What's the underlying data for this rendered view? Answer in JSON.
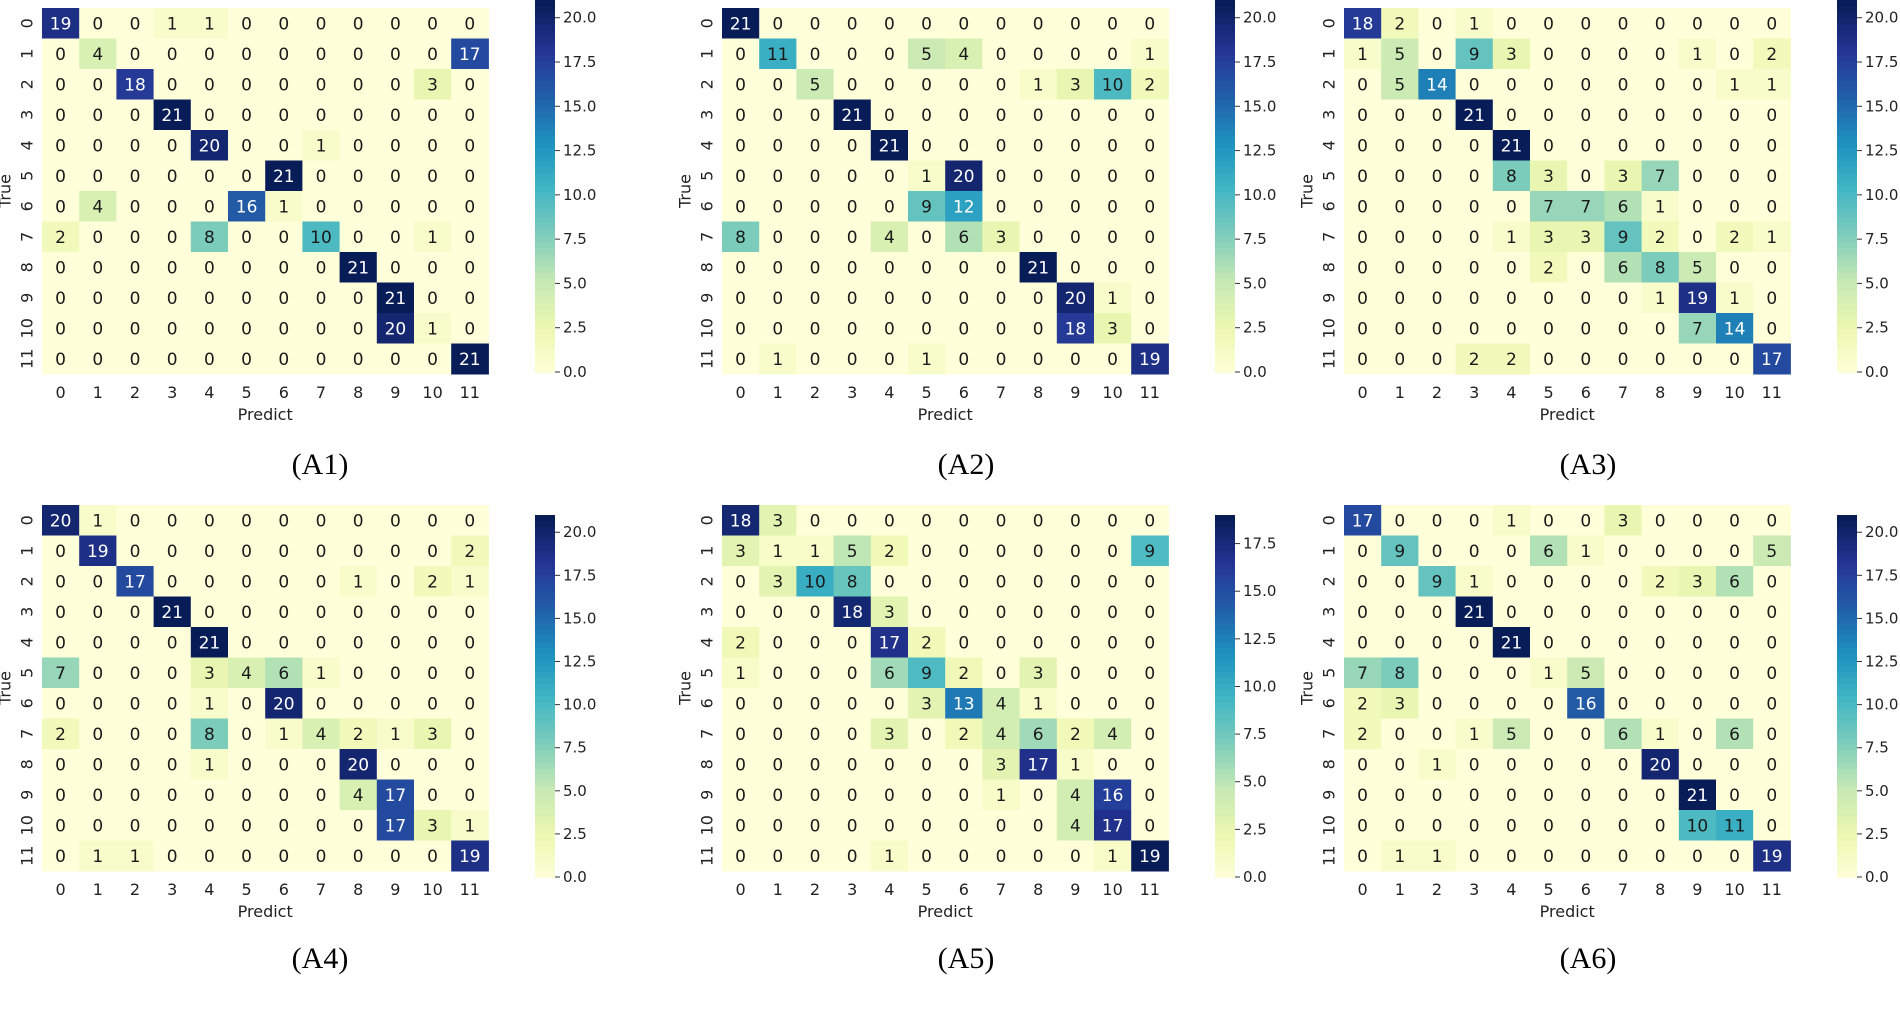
{
  "colorscale": {
    "name": "YlGnBu",
    "stops": [
      "#ffffd9",
      "#edf8b1",
      "#c7e9b4",
      "#7fcdbb",
      "#41b6c4",
      "#1d91c0",
      "#225ea8",
      "#253494",
      "#081d58"
    ]
  },
  "chart_data": [
    {
      "type": "heatmap",
      "caption": "(A1)",
      "xlabel": "Predict",
      "ylabel": "True",
      "categories": [
        "0",
        "1",
        "2",
        "3",
        "4",
        "5",
        "6",
        "7",
        "8",
        "9",
        "10",
        "11"
      ],
      "colorbar_ticks": [
        "0.0",
        "2.5",
        "5.0",
        "7.5",
        "10.0",
        "12.5",
        "15.0",
        "17.5",
        "20.0"
      ],
      "vmax": 21,
      "matrix": [
        [
          19,
          0,
          0,
          1,
          1,
          0,
          0,
          0,
          0,
          0,
          0,
          0
        ],
        [
          0,
          4,
          0,
          0,
          0,
          0,
          0,
          0,
          0,
          0,
          0,
          17
        ],
        [
          0,
          0,
          18,
          0,
          0,
          0,
          0,
          0,
          0,
          0,
          3,
          0
        ],
        [
          0,
          0,
          0,
          21,
          0,
          0,
          0,
          0,
          0,
          0,
          0,
          0
        ],
        [
          0,
          0,
          0,
          0,
          20,
          0,
          0,
          1,
          0,
          0,
          0,
          0
        ],
        [
          0,
          0,
          0,
          0,
          0,
          0,
          21,
          0,
          0,
          0,
          0,
          0
        ],
        [
          0,
          4,
          0,
          0,
          0,
          16,
          1,
          0,
          0,
          0,
          0,
          0
        ],
        [
          2,
          0,
          0,
          0,
          8,
          0,
          0,
          10,
          0,
          0,
          1,
          0
        ],
        [
          0,
          0,
          0,
          0,
          0,
          0,
          0,
          0,
          21,
          0,
          0,
          0
        ],
        [
          0,
          0,
          0,
          0,
          0,
          0,
          0,
          0,
          0,
          21,
          0,
          0
        ],
        [
          0,
          0,
          0,
          0,
          0,
          0,
          0,
          0,
          0,
          20,
          1,
          0
        ],
        [
          0,
          0,
          0,
          0,
          0,
          0,
          0,
          0,
          0,
          0,
          0,
          21
        ]
      ]
    },
    {
      "type": "heatmap",
      "caption": "(A2)",
      "xlabel": "Predict",
      "ylabel": "True",
      "categories": [
        "0",
        "1",
        "2",
        "3",
        "4",
        "5",
        "6",
        "7",
        "8",
        "9",
        "10",
        "11"
      ],
      "colorbar_ticks": [
        "0.0",
        "2.5",
        "5.0",
        "7.5",
        "10.0",
        "12.5",
        "15.0",
        "17.5",
        "20.0"
      ],
      "vmax": 21,
      "matrix": [
        [
          21,
          0,
          0,
          0,
          0,
          0,
          0,
          0,
          0,
          0,
          0,
          0
        ],
        [
          0,
          11,
          0,
          0,
          0,
          5,
          4,
          0,
          0,
          0,
          0,
          1
        ],
        [
          0,
          0,
          5,
          0,
          0,
          0,
          0,
          0,
          1,
          3,
          10,
          2
        ],
        [
          0,
          0,
          0,
          21,
          0,
          0,
          0,
          0,
          0,
          0,
          0,
          0
        ],
        [
          0,
          0,
          0,
          0,
          21,
          0,
          0,
          0,
          0,
          0,
          0,
          0
        ],
        [
          0,
          0,
          0,
          0,
          0,
          1,
          20,
          0,
          0,
          0,
          0,
          0
        ],
        [
          0,
          0,
          0,
          0,
          0,
          9,
          12,
          0,
          0,
          0,
          0,
          0
        ],
        [
          8,
          0,
          0,
          0,
          4,
          0,
          6,
          3,
          0,
          0,
          0,
          0
        ],
        [
          0,
          0,
          0,
          0,
          0,
          0,
          0,
          0,
          21,
          0,
          0,
          0
        ],
        [
          0,
          0,
          0,
          0,
          0,
          0,
          0,
          0,
          0,
          20,
          1,
          0
        ],
        [
          0,
          0,
          0,
          0,
          0,
          0,
          0,
          0,
          0,
          18,
          3,
          0
        ],
        [
          0,
          1,
          0,
          0,
          0,
          1,
          0,
          0,
          0,
          0,
          0,
          19
        ]
      ]
    },
    {
      "type": "heatmap",
      "caption": "(A3)",
      "xlabel": "Predict",
      "ylabel": "True",
      "categories": [
        "0",
        "1",
        "2",
        "3",
        "4",
        "5",
        "6",
        "7",
        "8",
        "9",
        "10",
        "11"
      ],
      "colorbar_ticks": [
        "0.0",
        "2.5",
        "5.0",
        "7.5",
        "10.0",
        "12.5",
        "15.0",
        "17.5",
        "20.0"
      ],
      "vmax": 21,
      "matrix": [
        [
          18,
          2,
          0,
          1,
          0,
          0,
          0,
          0,
          0,
          0,
          0,
          0
        ],
        [
          1,
          5,
          0,
          9,
          3,
          0,
          0,
          0,
          0,
          1,
          0,
          2
        ],
        [
          0,
          5,
          14,
          0,
          0,
          0,
          0,
          0,
          0,
          0,
          1,
          1
        ],
        [
          0,
          0,
          0,
          21,
          0,
          0,
          0,
          0,
          0,
          0,
          0,
          0
        ],
        [
          0,
          0,
          0,
          0,
          21,
          0,
          0,
          0,
          0,
          0,
          0,
          0
        ],
        [
          0,
          0,
          0,
          0,
          8,
          3,
          0,
          3,
          7,
          0,
          0,
          0
        ],
        [
          0,
          0,
          0,
          0,
          0,
          7,
          7,
          6,
          1,
          0,
          0,
          0
        ],
        [
          0,
          0,
          0,
          0,
          1,
          3,
          3,
          9,
          2,
          0,
          2,
          1
        ],
        [
          0,
          0,
          0,
          0,
          0,
          2,
          0,
          6,
          8,
          5,
          0,
          0
        ],
        [
          0,
          0,
          0,
          0,
          0,
          0,
          0,
          0,
          1,
          19,
          1,
          0
        ],
        [
          0,
          0,
          0,
          0,
          0,
          0,
          0,
          0,
          0,
          7,
          14,
          0
        ],
        [
          0,
          0,
          0,
          2,
          2,
          0,
          0,
          0,
          0,
          0,
          0,
          17
        ]
      ]
    },
    {
      "type": "heatmap",
      "caption": "(A4)",
      "xlabel": "Predict",
      "ylabel": "True",
      "categories": [
        "0",
        "1",
        "2",
        "3",
        "4",
        "5",
        "6",
        "7",
        "8",
        "9",
        "10",
        "11"
      ],
      "colorbar_ticks": [
        "0.0",
        "2.5",
        "5.0",
        "7.5",
        "10.0",
        "12.5",
        "15.0",
        "17.5",
        "20.0"
      ],
      "vmax": 21,
      "matrix": [
        [
          20,
          1,
          0,
          0,
          0,
          0,
          0,
          0,
          0,
          0,
          0,
          0
        ],
        [
          0,
          19,
          0,
          0,
          0,
          0,
          0,
          0,
          0,
          0,
          0,
          2
        ],
        [
          0,
          0,
          17,
          0,
          0,
          0,
          0,
          0,
          1,
          0,
          2,
          1
        ],
        [
          0,
          0,
          0,
          21,
          0,
          0,
          0,
          0,
          0,
          0,
          0,
          0
        ],
        [
          0,
          0,
          0,
          0,
          21,
          0,
          0,
          0,
          0,
          0,
          0,
          0
        ],
        [
          7,
          0,
          0,
          0,
          3,
          4,
          6,
          1,
          0,
          0,
          0,
          0
        ],
        [
          0,
          0,
          0,
          0,
          1,
          0,
          20,
          0,
          0,
          0,
          0,
          0
        ],
        [
          2,
          0,
          0,
          0,
          8,
          0,
          1,
          4,
          2,
          1,
          3,
          0
        ],
        [
          0,
          0,
          0,
          0,
          1,
          0,
          0,
          0,
          20,
          0,
          0,
          0
        ],
        [
          0,
          0,
          0,
          0,
          0,
          0,
          0,
          0,
          4,
          17,
          0,
          0
        ],
        [
          0,
          0,
          0,
          0,
          0,
          0,
          0,
          0,
          0,
          17,
          3,
          1
        ],
        [
          0,
          1,
          1,
          0,
          0,
          0,
          0,
          0,
          0,
          0,
          0,
          19
        ]
      ]
    },
    {
      "type": "heatmap",
      "caption": "(A5)",
      "xlabel": "Predict",
      "ylabel": "True",
      "categories": [
        "0",
        "1",
        "2",
        "3",
        "4",
        "5",
        "6",
        "7",
        "8",
        "9",
        "10",
        "11"
      ],
      "colorbar_ticks": [
        "0.0",
        "2.5",
        "5.0",
        "7.5",
        "10.0",
        "12.5",
        "15.0",
        "17.5"
      ],
      "vmax": 19,
      "matrix": [
        [
          18,
          3,
          0,
          0,
          0,
          0,
          0,
          0,
          0,
          0,
          0,
          0
        ],
        [
          3,
          1,
          1,
          5,
          2,
          0,
          0,
          0,
          0,
          0,
          0,
          9
        ],
        [
          0,
          3,
          10,
          8,
          0,
          0,
          0,
          0,
          0,
          0,
          0,
          0
        ],
        [
          0,
          0,
          0,
          18,
          3,
          0,
          0,
          0,
          0,
          0,
          0,
          0
        ],
        [
          2,
          0,
          0,
          0,
          17,
          2,
          0,
          0,
          0,
          0,
          0,
          0
        ],
        [
          1,
          0,
          0,
          0,
          6,
          9,
          2,
          0,
          3,
          0,
          0,
          0
        ],
        [
          0,
          0,
          0,
          0,
          0,
          3,
          13,
          4,
          1,
          0,
          0,
          0
        ],
        [
          0,
          0,
          0,
          0,
          3,
          0,
          2,
          4,
          6,
          2,
          4,
          0
        ],
        [
          0,
          0,
          0,
          0,
          0,
          0,
          0,
          3,
          17,
          1,
          0,
          0
        ],
        [
          0,
          0,
          0,
          0,
          0,
          0,
          0,
          1,
          0,
          4,
          16,
          0
        ],
        [
          0,
          0,
          0,
          0,
          0,
          0,
          0,
          0,
          0,
          4,
          17,
          0
        ],
        [
          0,
          0,
          0,
          0,
          1,
          0,
          0,
          0,
          0,
          0,
          1,
          19
        ]
      ]
    },
    {
      "type": "heatmap",
      "caption": "(A6)",
      "xlabel": "Predict",
      "ylabel": "True",
      "categories": [
        "0",
        "1",
        "2",
        "3",
        "4",
        "5",
        "6",
        "7",
        "8",
        "9",
        "10",
        "11"
      ],
      "colorbar_ticks": [
        "0.0",
        "2.5",
        "5.0",
        "7.5",
        "10.0",
        "12.5",
        "15.0",
        "17.5",
        "20.0"
      ],
      "vmax": 21,
      "matrix": [
        [
          17,
          0,
          0,
          0,
          1,
          0,
          0,
          3,
          0,
          0,
          0,
          0
        ],
        [
          0,
          9,
          0,
          0,
          0,
          6,
          1,
          0,
          0,
          0,
          0,
          5
        ],
        [
          0,
          0,
          9,
          1,
          0,
          0,
          0,
          0,
          2,
          3,
          6,
          0
        ],
        [
          0,
          0,
          0,
          21,
          0,
          0,
          0,
          0,
          0,
          0,
          0,
          0
        ],
        [
          0,
          0,
          0,
          0,
          21,
          0,
          0,
          0,
          0,
          0,
          0,
          0
        ],
        [
          7,
          8,
          0,
          0,
          0,
          1,
          5,
          0,
          0,
          0,
          0,
          0
        ],
        [
          2,
          3,
          0,
          0,
          0,
          0,
          16,
          0,
          0,
          0,
          0,
          0
        ],
        [
          2,
          0,
          0,
          1,
          5,
          0,
          0,
          6,
          1,
          0,
          6,
          0
        ],
        [
          0,
          0,
          1,
          0,
          0,
          0,
          0,
          0,
          20,
          0,
          0,
          0
        ],
        [
          0,
          0,
          0,
          0,
          0,
          0,
          0,
          0,
          0,
          21,
          0,
          0
        ],
        [
          0,
          0,
          0,
          0,
          0,
          0,
          0,
          0,
          0,
          10,
          11,
          0
        ],
        [
          0,
          1,
          1,
          0,
          0,
          0,
          0,
          0,
          0,
          0,
          0,
          19
        ]
      ]
    }
  ]
}
